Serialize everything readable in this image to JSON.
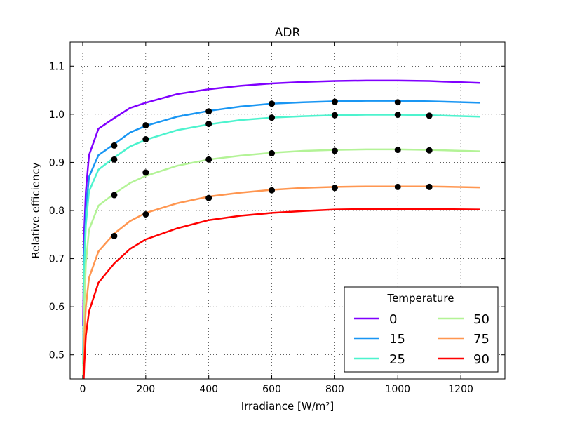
{
  "chart_data": {
    "type": "line",
    "title": "ADR",
    "xlabel": "Irradiance [W/m²]",
    "ylabel": "Relative efficiency",
    "xlim": [
      -40,
      1340
    ],
    "ylim": [
      0.45,
      1.15
    ],
    "xticks": [
      0,
      200,
      400,
      600,
      800,
      1000,
      1200
    ],
    "yticks": [
      0.5,
      0.6,
      0.7,
      0.8,
      0.9,
      1.0,
      1.1
    ],
    "grid": true,
    "legend": {
      "title": "Temperature",
      "position": "lower-right",
      "columns": 2
    },
    "series": [
      {
        "name": "0",
        "color": "#8000ff",
        "curve": {
          "x": [
            1,
            5,
            10,
            20,
            50,
            100,
            150,
            200,
            300,
            400,
            500,
            600,
            700,
            800,
            900,
            1000,
            1100,
            1260
          ],
          "y": [
            0.56,
            0.76,
            0.84,
            0.915,
            0.97,
            0.992,
            1.013,
            1.024,
            1.042,
            1.052,
            1.059,
            1.064,
            1.067,
            1.069,
            1.07,
            1.07,
            1.069,
            1.065
          ]
        },
        "points": []
      },
      {
        "name": "15",
        "color": "#1996f3",
        "curve": {
          "x": [
            1,
            5,
            10,
            20,
            50,
            100,
            150,
            200,
            300,
            400,
            500,
            600,
            700,
            800,
            900,
            1000,
            1100,
            1260
          ],
          "y": [
            0.5,
            0.7,
            0.8,
            0.87,
            0.915,
            0.938,
            0.962,
            0.976,
            0.995,
            1.007,
            1.016,
            1.022,
            1.025,
            1.027,
            1.028,
            1.028,
            1.027,
            1.024
          ]
        },
        "points": [
          {
            "x": 100,
            "y": 0.935
          },
          {
            "x": 200,
            "y": 0.977
          },
          {
            "x": 400,
            "y": 1.006
          },
          {
            "x": 600,
            "y": 1.022
          },
          {
            "x": 800,
            "y": 1.026
          },
          {
            "x": 1000,
            "y": 1.025
          }
        ]
      },
      {
        "name": "25",
        "color": "#4df3ce",
        "curve": {
          "x": [
            1,
            5,
            10,
            20,
            50,
            100,
            150,
            200,
            300,
            400,
            500,
            600,
            700,
            800,
            900,
            1000,
            1100,
            1260
          ],
          "y": [
            0.48,
            0.68,
            0.77,
            0.84,
            0.885,
            0.91,
            0.933,
            0.947,
            0.967,
            0.979,
            0.988,
            0.993,
            0.996,
            0.998,
            0.999,
            0.999,
            0.998,
            0.995
          ]
        },
        "points": [
          {
            "x": 100,
            "y": 0.906
          },
          {
            "x": 200,
            "y": 0.948
          },
          {
            "x": 400,
            "y": 0.98
          },
          {
            "x": 600,
            "y": 0.993
          },
          {
            "x": 800,
            "y": 0.998
          },
          {
            "x": 1000,
            "y": 0.999
          },
          {
            "x": 1100,
            "y": 0.997
          }
        ]
      },
      {
        "name": "50",
        "color": "#b3f396",
        "curve": {
          "x": [
            1,
            5,
            10,
            20,
            50,
            100,
            150,
            200,
            300,
            400,
            500,
            600,
            700,
            800,
            900,
            1000,
            1100,
            1260
          ],
          "y": [
            0.44,
            0.6,
            0.69,
            0.76,
            0.81,
            0.835,
            0.857,
            0.872,
            0.893,
            0.906,
            0.914,
            0.92,
            0.924,
            0.926,
            0.927,
            0.927,
            0.926,
            0.923
          ]
        },
        "points": [
          {
            "x": 100,
            "y": 0.832
          },
          {
            "x": 200,
            "y": 0.879
          },
          {
            "x": 400,
            "y": 0.906
          },
          {
            "x": 600,
            "y": 0.919
          },
          {
            "x": 800,
            "y": 0.924
          },
          {
            "x": 1000,
            "y": 0.926
          },
          {
            "x": 1100,
            "y": 0.925
          }
        ]
      },
      {
        "name": "75",
        "color": "#ff9650",
        "curve": {
          "x": [
            1,
            5,
            10,
            20,
            50,
            100,
            150,
            200,
            300,
            400,
            500,
            600,
            700,
            800,
            900,
            1000,
            1100,
            1260
          ],
          "y": [
            0.42,
            0.53,
            0.6,
            0.66,
            0.715,
            0.752,
            0.778,
            0.795,
            0.815,
            0.829,
            0.837,
            0.843,
            0.847,
            0.849,
            0.85,
            0.85,
            0.85,
            0.848
          ]
        },
        "points": [
          {
            "x": 100,
            "y": 0.747
          },
          {
            "x": 200,
            "y": 0.792
          },
          {
            "x": 400,
            "y": 0.826
          },
          {
            "x": 600,
            "y": 0.842
          },
          {
            "x": 800,
            "y": 0.847
          },
          {
            "x": 1000,
            "y": 0.849
          },
          {
            "x": 1100,
            "y": 0.849
          }
        ]
      },
      {
        "name": "90",
        "color": "#ff0000",
        "curve": {
          "x": [
            1,
            5,
            10,
            20,
            50,
            100,
            150,
            200,
            300,
            400,
            500,
            600,
            700,
            800,
            900,
            1000,
            1100,
            1260
          ],
          "y": [
            0.41,
            0.48,
            0.54,
            0.59,
            0.65,
            0.69,
            0.72,
            0.74,
            0.763,
            0.78,
            0.789,
            0.795,
            0.799,
            0.802,
            0.803,
            0.803,
            0.803,
            0.802
          ]
        },
        "points": []
      }
    ]
  }
}
